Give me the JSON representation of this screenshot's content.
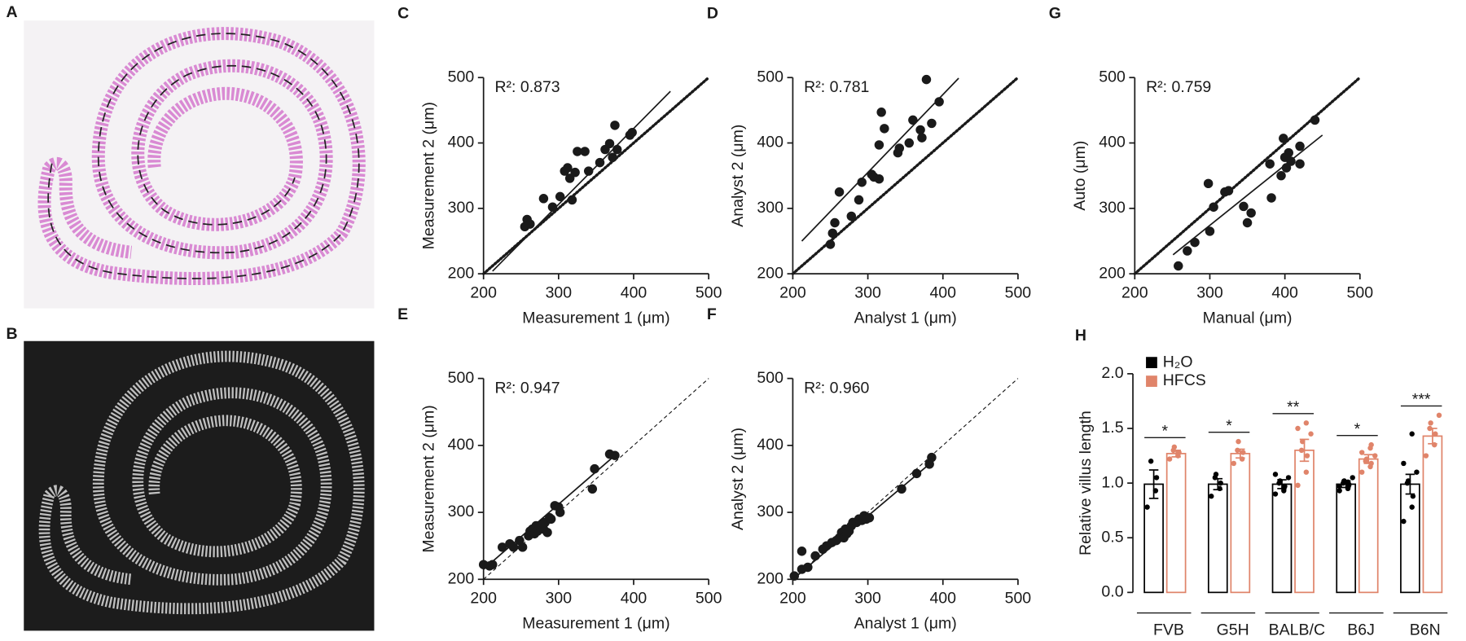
{
  "images": [
    {
      "panel": "A"
    },
    {
      "panel": "B"
    }
  ],
  "chart_data": [
    {
      "type": "scatter",
      "panel": "C",
      "annotation": "R²: 0.873",
      "xlabel": "Measurement 1 (μm)",
      "ylabel": "Measurement 2 (μm)",
      "xlim": [
        200,
        500
      ],
      "ylim": [
        200,
        500
      ],
      "xticks": [
        200,
        300,
        400,
        500
      ],
      "yticks": [
        200,
        300,
        400,
        500
      ],
      "identity_line": "dotted",
      "color": "#1a1a1a",
      "x": [
        255,
        258,
        262,
        280,
        292,
        302,
        308,
        312,
        315,
        318,
        322,
        325,
        335,
        340,
        355,
        362,
        368,
        372,
        375,
        378,
        395,
        398
      ],
      "y": [
        272,
        283,
        276,
        315,
        302,
        318,
        357,
        362,
        346,
        313,
        355,
        387,
        387,
        357,
        370,
        390,
        399,
        378,
        427,
        390,
        412,
        416
      ],
      "fit": {
        "x": [
          212,
          449
        ],
        "y": [
          204,
          479
        ]
      }
    },
    {
      "type": "scatter",
      "panel": "D",
      "annotation": "R²: 0.781",
      "xlabel": "Analyst 1 (μm)",
      "ylabel": "Analyst 2 (μm)",
      "xlim": [
        200,
        500
      ],
      "ylim": [
        200,
        500
      ],
      "xticks": [
        200,
        300,
        400,
        500
      ],
      "yticks": [
        200,
        300,
        400,
        500
      ],
      "identity_line": "dotted",
      "color": "#1a1a1a",
      "x": [
        250,
        253,
        256,
        262,
        278,
        288,
        292,
        305,
        308,
        315,
        318,
        315,
        322,
        340,
        342,
        355,
        360,
        370,
        372,
        378,
        385,
        395
      ],
      "y": [
        245,
        262,
        278,
        325,
        288,
        313,
        340,
        352,
        348,
        345,
        447,
        397,
        422,
        385,
        392,
        400,
        435,
        420,
        408,
        497,
        430,
        463
      ],
      "fit": {
        "x": [
          212,
          421
        ],
        "y": [
          250,
          499
        ]
      }
    },
    {
      "type": "scatter",
      "panel": "G",
      "annotation": "R²: 0.759",
      "xlabel": "Manual (μm)",
      "ylabel": "Auto (μm)",
      "xlim": [
        200,
        500
      ],
      "ylim": [
        200,
        500
      ],
      "xticks": [
        200,
        300,
        400,
        500
      ],
      "yticks": [
        200,
        300,
        400,
        500
      ],
      "identity_line": "dotted",
      "color": "#1a1a1a",
      "x": [
        258,
        270,
        280,
        298,
        300,
        305,
        320,
        325,
        345,
        350,
        355,
        380,
        382,
        395,
        398,
        400,
        402,
        405,
        408,
        420,
        420,
        440
      ],
      "y": [
        212,
        235,
        248,
        338,
        265,
        302,
        325,
        327,
        303,
        278,
        293,
        368,
        316,
        350,
        407,
        378,
        362,
        385,
        372,
        395,
        368,
        435
      ],
      "fit": {
        "x": [
          251,
          450
        ],
        "y": [
          229,
          412
        ]
      }
    },
    {
      "type": "scatter",
      "panel": "E",
      "annotation": "R²: 0.947",
      "xlabel": "Measurement 1 (μm)",
      "ylabel": "Measurement 2 (μm)",
      "xlim": [
        200,
        500
      ],
      "ylim": [
        200,
        500
      ],
      "xticks": [
        200,
        300,
        400,
        500
      ],
      "yticks": [
        200,
        300,
        400,
        500
      ],
      "identity_line": "dashed",
      "color": "#1a1a1a",
      "x": [
        200,
        208,
        212,
        225,
        235,
        240,
        248,
        252,
        260,
        262,
        265,
        268,
        270,
        272,
        275,
        278,
        280,
        282,
        285,
        288,
        290,
        295,
        300,
        302,
        345,
        348,
        368,
        375
      ],
      "y": [
        222,
        220,
        222,
        248,
        253,
        248,
        258,
        248,
        265,
        272,
        275,
        268,
        280,
        272,
        278,
        282,
        275,
        285,
        270,
        292,
        290,
        310,
        308,
        300,
        335,
        365,
        387,
        385
      ],
      "fit": {
        "x": [
          200,
          375
        ],
        "y": [
          215,
          385
        ]
      }
    },
    {
      "type": "scatter",
      "panel": "F",
      "annotation": "R²: 0.960",
      "xlabel": "Analyst 1 (μm)",
      "ylabel": "Analyst 2 (μm)",
      "xlim": [
        200,
        500
      ],
      "ylim": [
        200,
        500
      ],
      "xticks": [
        200,
        300,
        400,
        500
      ],
      "yticks": [
        200,
        300,
        400,
        500
      ],
      "identity_line": "dashed",
      "color": "#1a1a1a",
      "x": [
        202,
        212,
        212,
        220,
        230,
        240,
        245,
        252,
        258,
        262,
        265,
        268,
        270,
        272,
        275,
        278,
        280,
        285,
        288,
        292,
        295,
        298,
        302,
        345,
        365,
        382,
        385
      ],
      "y": [
        205,
        242,
        215,
        218,
        235,
        245,
        250,
        255,
        258,
        262,
        270,
        262,
        275,
        268,
        272,
        280,
        285,
        285,
        290,
        288,
        295,
        290,
        292,
        335,
        358,
        372,
        382
      ],
      "fit": {
        "x": [
          200,
          385
        ],
        "y": [
          200,
          375
        ]
      }
    },
    {
      "type": "bar",
      "panel": "H",
      "ylabel": "Relative villus length",
      "categories": [
        "FVB",
        "G5H",
        "BALB/C",
        "B6J",
        "B6N"
      ],
      "significance": [
        "*",
        "*",
        "**",
        "*",
        "***"
      ],
      "ylim": [
        0,
        2
      ],
      "yticks": [
        {
          "value": 0,
          "label": "0.0"
        },
        {
          "value": 0.5,
          "label": "0.5"
        },
        {
          "value": 1,
          "label": "1.0"
        },
        {
          "value": 1.5,
          "label": "1.5"
        },
        {
          "value": 2,
          "label": "2.0"
        }
      ],
      "legend": "top-left",
      "series": [
        {
          "name": "H₂O",
          "color": "#000000",
          "values": [
            0.99,
            0.99,
            0.99,
            0.99,
            0.99
          ],
          "errors": [
            0.13,
            0.05,
            0.04,
            0.03,
            0.09
          ],
          "points": [
            [
              0.78,
              0.93,
              1.05,
              1.2
            ],
            [
              0.88,
              0.95,
              1.0,
              1.05,
              1.08
            ],
            [
              0.9,
              0.93,
              0.97,
              1.0,
              1.02,
              1.05,
              1.08,
              0.95
            ],
            [
              0.93,
              0.95,
              0.98,
              1.0,
              1.02,
              1.05,
              0.97,
              1.01,
              0.99
            ],
            [
              0.65,
              0.78,
              0.88,
              1.0,
              1.02,
              1.1,
              1.18,
              1.45
            ]
          ]
        },
        {
          "name": "HFCS",
          "color": "#e0846a",
          "values": [
            1.27,
            1.27,
            1.3,
            1.22,
            1.43
          ],
          "errors": [
            0.03,
            0.04,
            0.1,
            0.04,
            0.07
          ],
          "points": [
            [
              1.22,
              1.25,
              1.28,
              1.3,
              1.33
            ],
            [
              1.18,
              1.22,
              1.28,
              1.3,
              1.38
            ],
            [
              0.98,
              1.1,
              1.25,
              1.3,
              1.38,
              1.45,
              1.5,
              1.55
            ],
            [
              1.1,
              1.15,
              1.18,
              1.2,
              1.22,
              1.25,
              1.28,
              1.32,
              1.35
            ],
            [
              1.25,
              1.35,
              1.45,
              1.5,
              1.55,
              1.62
            ]
          ]
        }
      ]
    }
  ]
}
